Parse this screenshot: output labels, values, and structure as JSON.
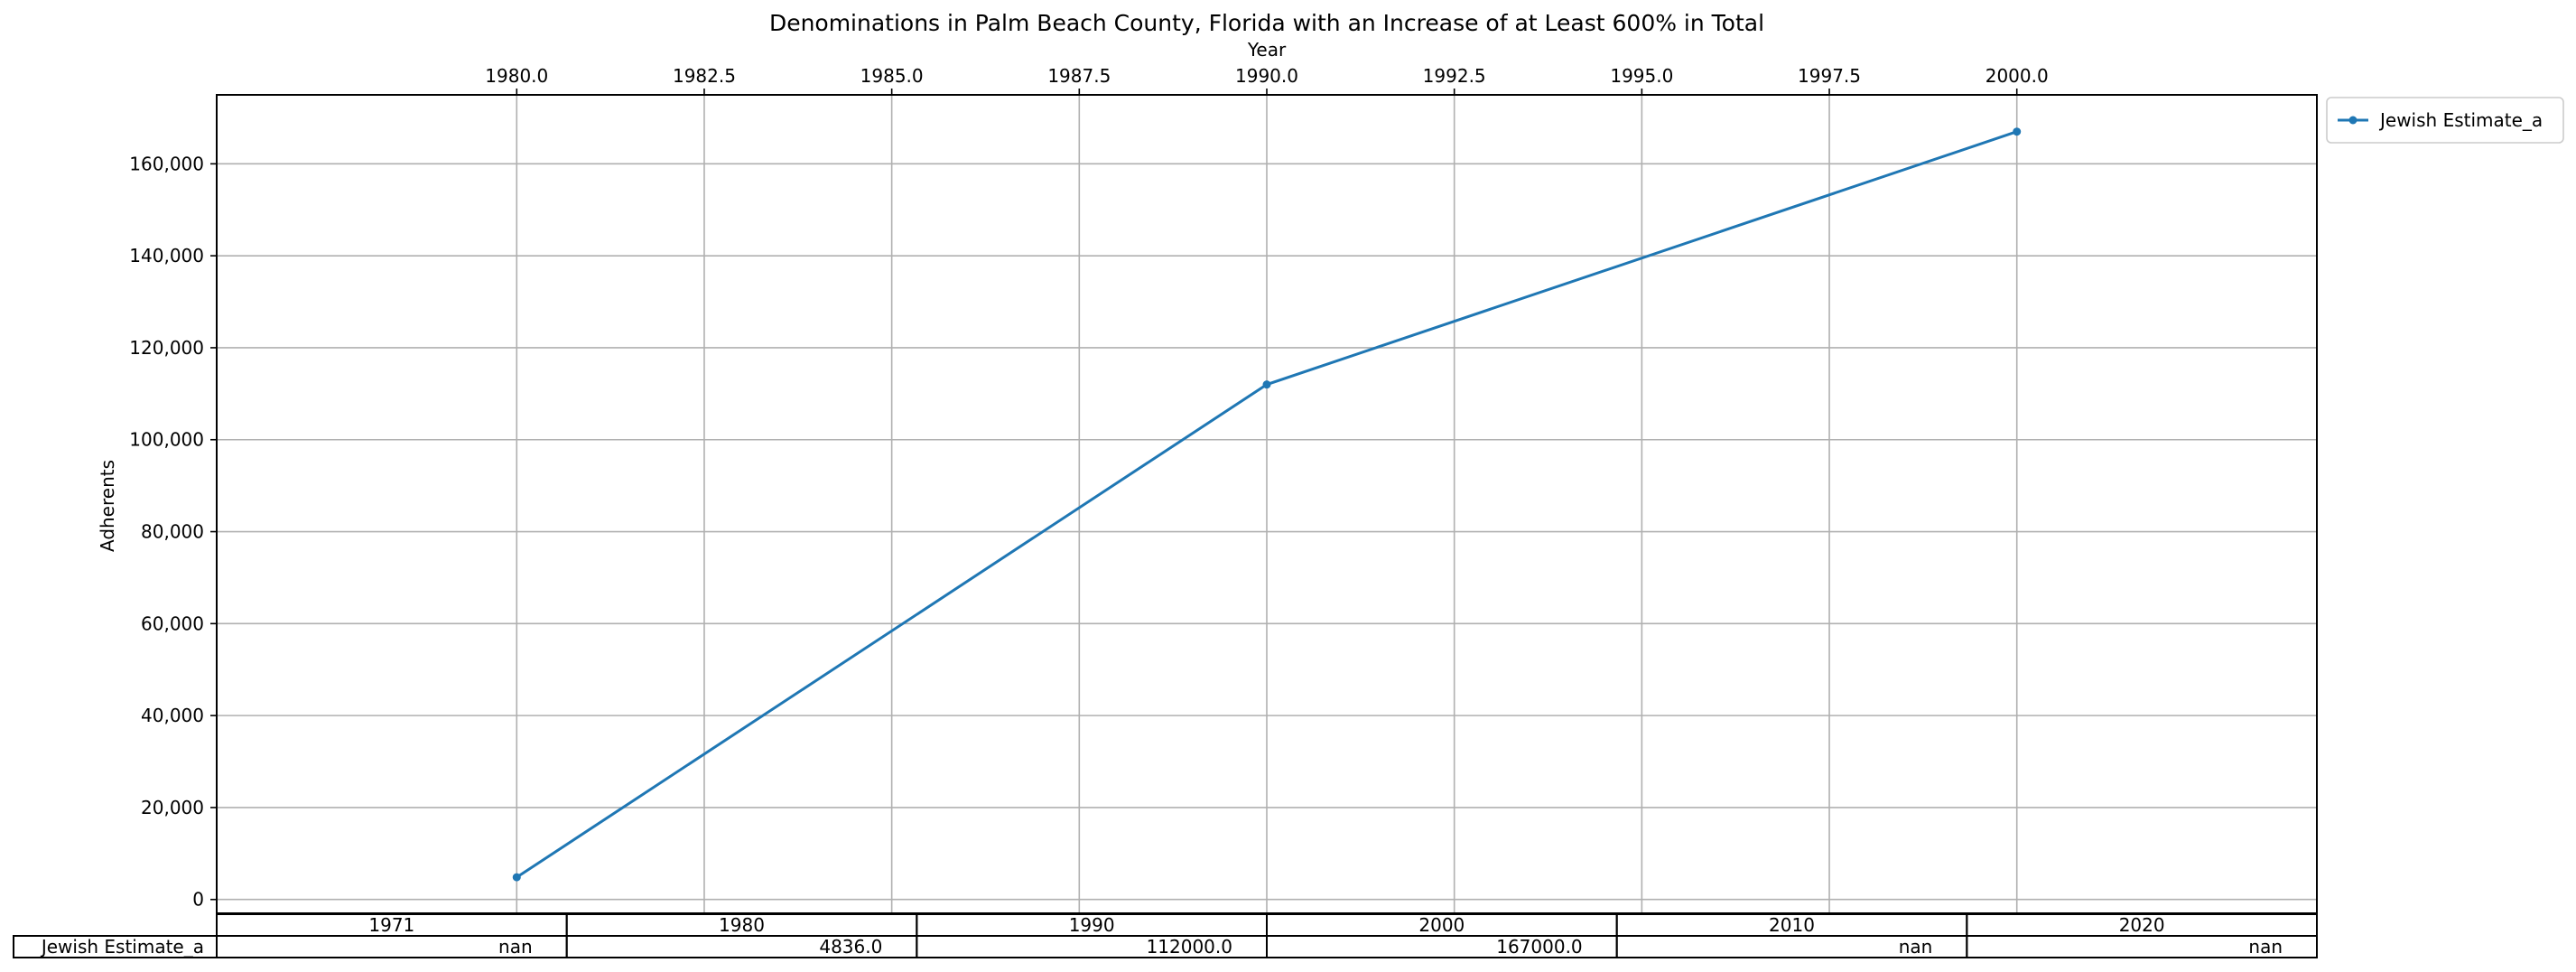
{
  "chart_data": {
    "type": "line",
    "title": "Denominations in Palm Beach County, Florida with an Increase of at Least 600% in Total",
    "xlabel": "Year",
    "ylabel": "Adherents",
    "x": [
      1980,
      1990,
      2000
    ],
    "xlim": [
      1976,
      2004
    ],
    "ylim": [
      -3000,
      175000
    ],
    "x_ticks": [
      1980,
      1982.5,
      1985,
      1987.5,
      1990,
      1992.5,
      1995,
      1997.5,
      2000
    ],
    "x_tick_labels": [
      "1980.0",
      "1982.5",
      "1985.0",
      "1987.5",
      "1990.0",
      "1992.5",
      "1995.0",
      "1997.5",
      "2000.0"
    ],
    "y_ticks": [
      0,
      20000,
      40000,
      60000,
      80000,
      100000,
      120000,
      140000,
      160000
    ],
    "y_tick_labels": [
      "0",
      "20,000",
      "40,000",
      "60,000",
      "80,000",
      "100,000",
      "120,000",
      "140,000",
      "160,000"
    ],
    "x_axis_position": "top",
    "grid": true,
    "legend_placement": "outside-top-right",
    "series": [
      {
        "name": "Jewish Estimate_a",
        "color": "#1f77b4",
        "values": [
          4836,
          112000,
          167000
        ]
      }
    ],
    "table": {
      "columns": [
        "1971",
        "1980",
        "1990",
        "2000",
        "2010",
        "2020"
      ],
      "rows": [
        {
          "label": "Jewish Estimate_a",
          "cells": [
            "nan",
            "4836.0",
            "112000.0",
            "167000.0",
            "nan",
            "nan"
          ]
        }
      ]
    }
  }
}
